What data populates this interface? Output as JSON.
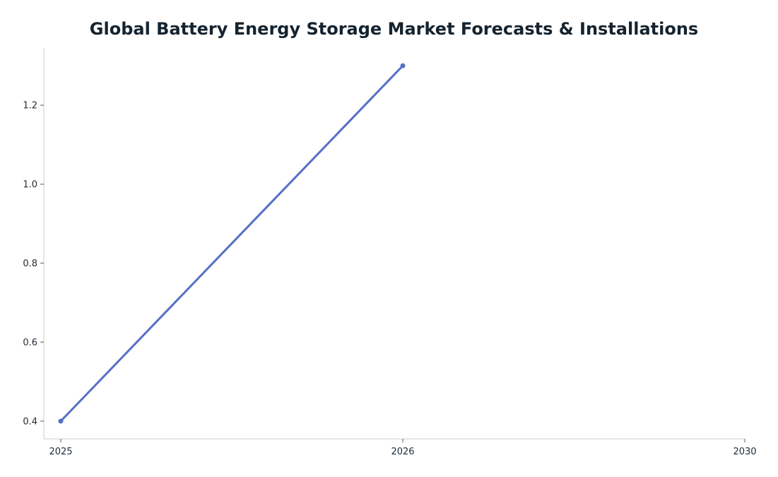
{
  "chart_data": {
    "type": "line",
    "title": "Global Battery Energy Storage Market Forecasts & Installations",
    "xlabel": "",
    "ylabel": "",
    "x_tick_labels": [
      "2025",
      "2026",
      "2030"
    ],
    "y_ticks": [
      0.4,
      0.6,
      0.8,
      1.0,
      1.2
    ],
    "y_tick_labels": [
      "0.4",
      "0.6",
      "0.8",
      "1.0",
      "1.2"
    ],
    "ylim": [
      0.355,
      1.345
    ],
    "series": [
      {
        "color": "#5470c6",
        "points": [
          {
            "x": "2025",
            "y": 0.4
          },
          {
            "x": "2026",
            "y": 1.3
          }
        ]
      }
    ],
    "grid": false,
    "legend": "none"
  }
}
